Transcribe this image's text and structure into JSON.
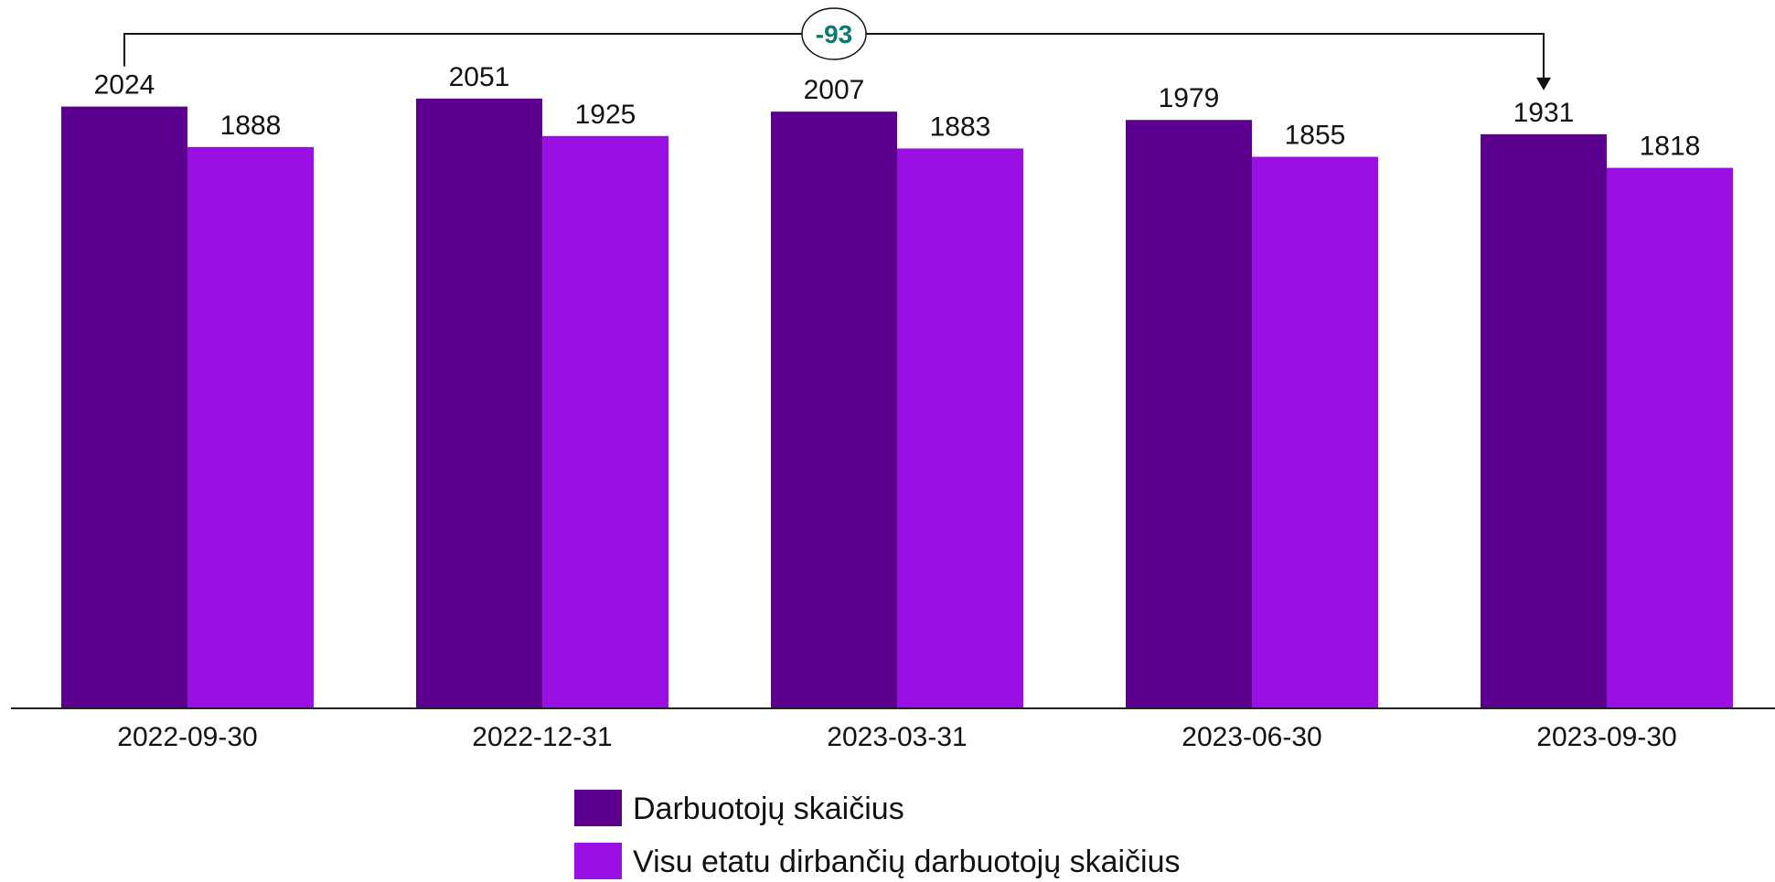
{
  "chart_data": {
    "type": "bar",
    "categories": [
      "2022-09-30",
      "2022-12-31",
      "2023-03-31",
      "2023-06-30",
      "2023-09-30"
    ],
    "series": [
      {
        "name": "Darbuotojų skaičius",
        "values": [
          2024,
          2051,
          2007,
          1979,
          1931
        ],
        "color": "#5c0090"
      },
      {
        "name": "Visu etatu dirbančių darbuotojų skaičius",
        "values": [
          1888,
          1925,
          1883,
          1855,
          1818
        ],
        "color": "#9a0fe3"
      }
    ],
    "annotation": {
      "text": "-93",
      "from_category": "2022-09-30",
      "to_category": "2023-09-30",
      "series": 0,
      "color": "#0e7a6f"
    },
    "title": "",
    "xlabel": "",
    "ylabel": "",
    "legend_position": "bottom",
    "grid": false
  }
}
